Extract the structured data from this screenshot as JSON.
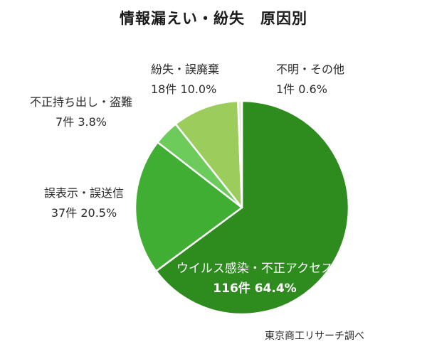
{
  "chart_data": {
    "type": "pie",
    "title": "情報漏えい・紛失　原因別",
    "slices": [
      {
        "label": "ウイルス感染・不正アクセス",
        "count_text": "116件",
        "pct_text": "64.4%",
        "value": 64.4,
        "color": "#2e8b1e"
      },
      {
        "label": "誤表示・誤送信",
        "count_text": "37件",
        "pct_text": "20.5%",
        "value": 20.5,
        "color": "#3fae33"
      },
      {
        "label": "不正持ち出し・盗難",
        "count_text": "7件",
        "pct_text": "3.8%",
        "value": 3.8,
        "color": "#6ccb5a"
      },
      {
        "label": "紛失・誤廃棄",
        "count_text": "18件",
        "pct_text": "10.0%",
        "value": 10.0,
        "color": "#9ccd5c"
      },
      {
        "label": "不明・その他",
        "count_text": "1件",
        "pct_text": "0.6%",
        "value": 0.6,
        "color": "#e4f0d8"
      }
    ],
    "source": "東京商工リサーチ調べ"
  }
}
